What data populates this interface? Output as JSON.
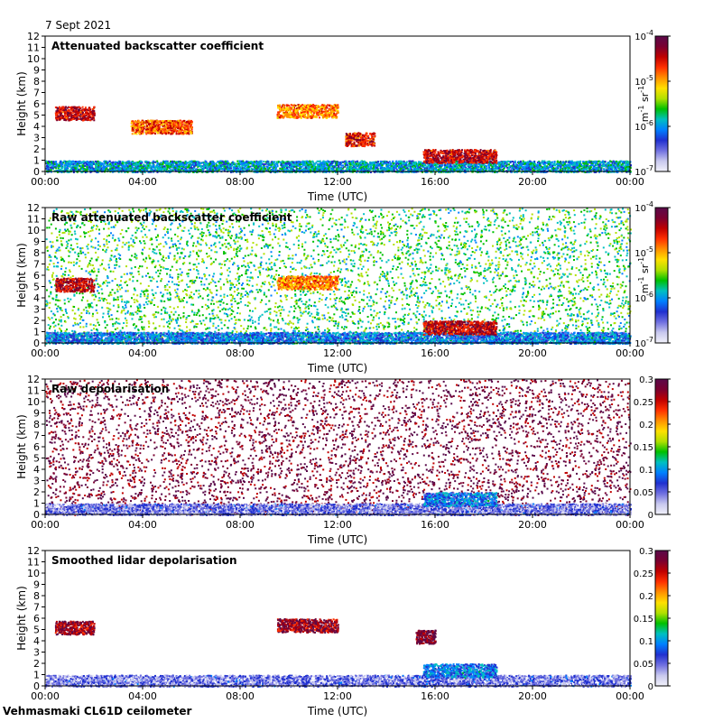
{
  "header": {
    "date": "7 Sept 2021"
  },
  "footer": {
    "station": "Vehmasmaki CL61D ceilometer"
  },
  "colors": {
    "plot_background": "#ffffff",
    "axis": "#000000",
    "colormap_jet": [
      "#f2f2fa",
      "#c8c8ee",
      "#7070e0",
      "#2030d0",
      "#0080ff",
      "#00c0c0",
      "#00c000",
      "#b0e000",
      "#ffe000",
      "#ff9000",
      "#ff3000",
      "#c00000",
      "#7a0030",
      "#5a0a4a"
    ]
  },
  "chart_data": [
    {
      "type": "heatmap",
      "title": "Attenuated backscatter coefficient",
      "xlabel": "Time (UTC)",
      "ylabel": "Height (km)",
      "x_ticks": [
        "00:00",
        "04:00",
        "08:00",
        "12:00",
        "16:00",
        "20:00",
        "00:00"
      ],
      "y_ticks": [
        "0",
        "1",
        "2",
        "3",
        "4",
        "5",
        "6",
        "7",
        "8",
        "9",
        "10",
        "11",
        "12"
      ],
      "ylim": [
        0,
        12
      ],
      "colorbar": {
        "scale": "log",
        "ticks": [
          "10-7",
          "10-6",
          "10-5",
          "10-4"
        ],
        "unit": "m-1 sr-1"
      },
      "features": [
        {
          "name": "boundary layer",
          "t_start": 0,
          "t_end": 24,
          "h_top": 1.0,
          "level": 0.35
        },
        {
          "name": "mid-level cloud",
          "t_start": 0.4,
          "t_end": 2.0,
          "h_top": 5.8,
          "level": 0.85
        },
        {
          "name": "mid-level cloud",
          "t_start": 3.5,
          "t_end": 6.0,
          "h_top": 4.6,
          "level": 0.75
        },
        {
          "name": "descending layer",
          "t_start": 9.5,
          "t_end": 12.0,
          "h_top": 6.0,
          "level": 0.7
        },
        {
          "name": "convective cloud",
          "t_start": 12.3,
          "t_end": 13.5,
          "h_top": 3.5,
          "level": 0.8
        },
        {
          "name": "low cloud",
          "t_start": 15.5,
          "t_end": 18.5,
          "h_top": 2.0,
          "level": 0.85
        }
      ]
    },
    {
      "type": "heatmap",
      "title": "Raw attenuated backscatter coefficient",
      "xlabel": "Time (UTC)",
      "ylabel": "Height (km)",
      "x_ticks": [
        "00:00",
        "04:00",
        "08:00",
        "12:00",
        "16:00",
        "20:00",
        "00:00"
      ],
      "y_ticks": [
        "0",
        "1",
        "2",
        "3",
        "4",
        "5",
        "6",
        "7",
        "8",
        "9",
        "10",
        "11",
        "12"
      ],
      "ylim": [
        0,
        12
      ],
      "colorbar": {
        "scale": "log",
        "ticks": [
          "10-7",
          "10-6",
          "10-5",
          "10-4"
        ],
        "unit": "m-1 sr-1"
      },
      "features": [
        {
          "name": "noisy background",
          "t_start": 0,
          "t_end": 24,
          "h_top": 12,
          "level": 0.45
        },
        {
          "name": "boundary layer",
          "t_start": 0,
          "t_end": 24,
          "h_top": 1.0,
          "level": 0.3
        },
        {
          "name": "mid-level cloud",
          "t_start": 0.4,
          "t_end": 2.0,
          "h_top": 5.8,
          "level": 0.85
        },
        {
          "name": "descending layer",
          "t_start": 9.5,
          "t_end": 12.0,
          "h_top": 6.0,
          "level": 0.7
        },
        {
          "name": "low cloud",
          "t_start": 15.5,
          "t_end": 18.5,
          "h_top": 2.0,
          "level": 0.85
        }
      ]
    },
    {
      "type": "heatmap",
      "title": "Raw depolarisation",
      "xlabel": "Time (UTC)",
      "ylabel": "Height (km)",
      "x_ticks": [
        "00:00",
        "04:00",
        "08:00",
        "12:00",
        "16:00",
        "20:00",
        "00:00"
      ],
      "y_ticks": [
        "0",
        "1",
        "2",
        "3",
        "4",
        "5",
        "6",
        "7",
        "8",
        "9",
        "10",
        "11",
        "12"
      ],
      "ylim": [
        0,
        12
      ],
      "colorbar": {
        "scale": "linear",
        "ticks": [
          "0",
          "0.05",
          "0.1",
          "0.15",
          "0.2",
          "0.25",
          "0.3"
        ]
      },
      "features": [
        {
          "name": "noisy background",
          "t_start": 0,
          "t_end": 24,
          "h_top": 12,
          "level": 0.95
        },
        {
          "name": "boundary layer",
          "t_start": 0,
          "t_end": 24,
          "h_top": 1.0,
          "level": 0.15
        },
        {
          "name": "low cloud",
          "t_start": 15.5,
          "t_end": 18.5,
          "h_top": 2.0,
          "level": 0.3
        }
      ]
    },
    {
      "type": "heatmap",
      "title": "Smoothed lidar depolarisation",
      "xlabel": "Time (UTC)",
      "ylabel": "Height (km)",
      "x_ticks": [
        "00:00",
        "04:00",
        "08:00",
        "12:00",
        "16:00",
        "20:00",
        "00:00"
      ],
      "y_ticks": [
        "0",
        "1",
        "2",
        "3",
        "4",
        "5",
        "6",
        "7",
        "8",
        "9",
        "10",
        "11",
        "12"
      ],
      "ylim": [
        0,
        12
      ],
      "colorbar": {
        "scale": "linear",
        "ticks": [
          "0",
          "0.05",
          "0.1",
          "0.15",
          "0.2",
          "0.25",
          "0.3"
        ]
      },
      "features": [
        {
          "name": "boundary layer",
          "t_start": 0,
          "t_end": 24,
          "h_top": 1.0,
          "level": 0.15
        },
        {
          "name": "mid-level cloud",
          "t_start": 0.4,
          "t_end": 2.0,
          "h_top": 5.8,
          "level": 0.9
        },
        {
          "name": "descending layer",
          "t_start": 9.5,
          "t_end": 12.0,
          "h_top": 6.0,
          "level": 0.9
        },
        {
          "name": "convective cloud",
          "t_start": 15.2,
          "t_end": 16.0,
          "h_top": 5.0,
          "level": 0.95
        },
        {
          "name": "low cloud",
          "t_start": 15.5,
          "t_end": 18.5,
          "h_top": 2.0,
          "level": 0.3
        }
      ]
    }
  ]
}
